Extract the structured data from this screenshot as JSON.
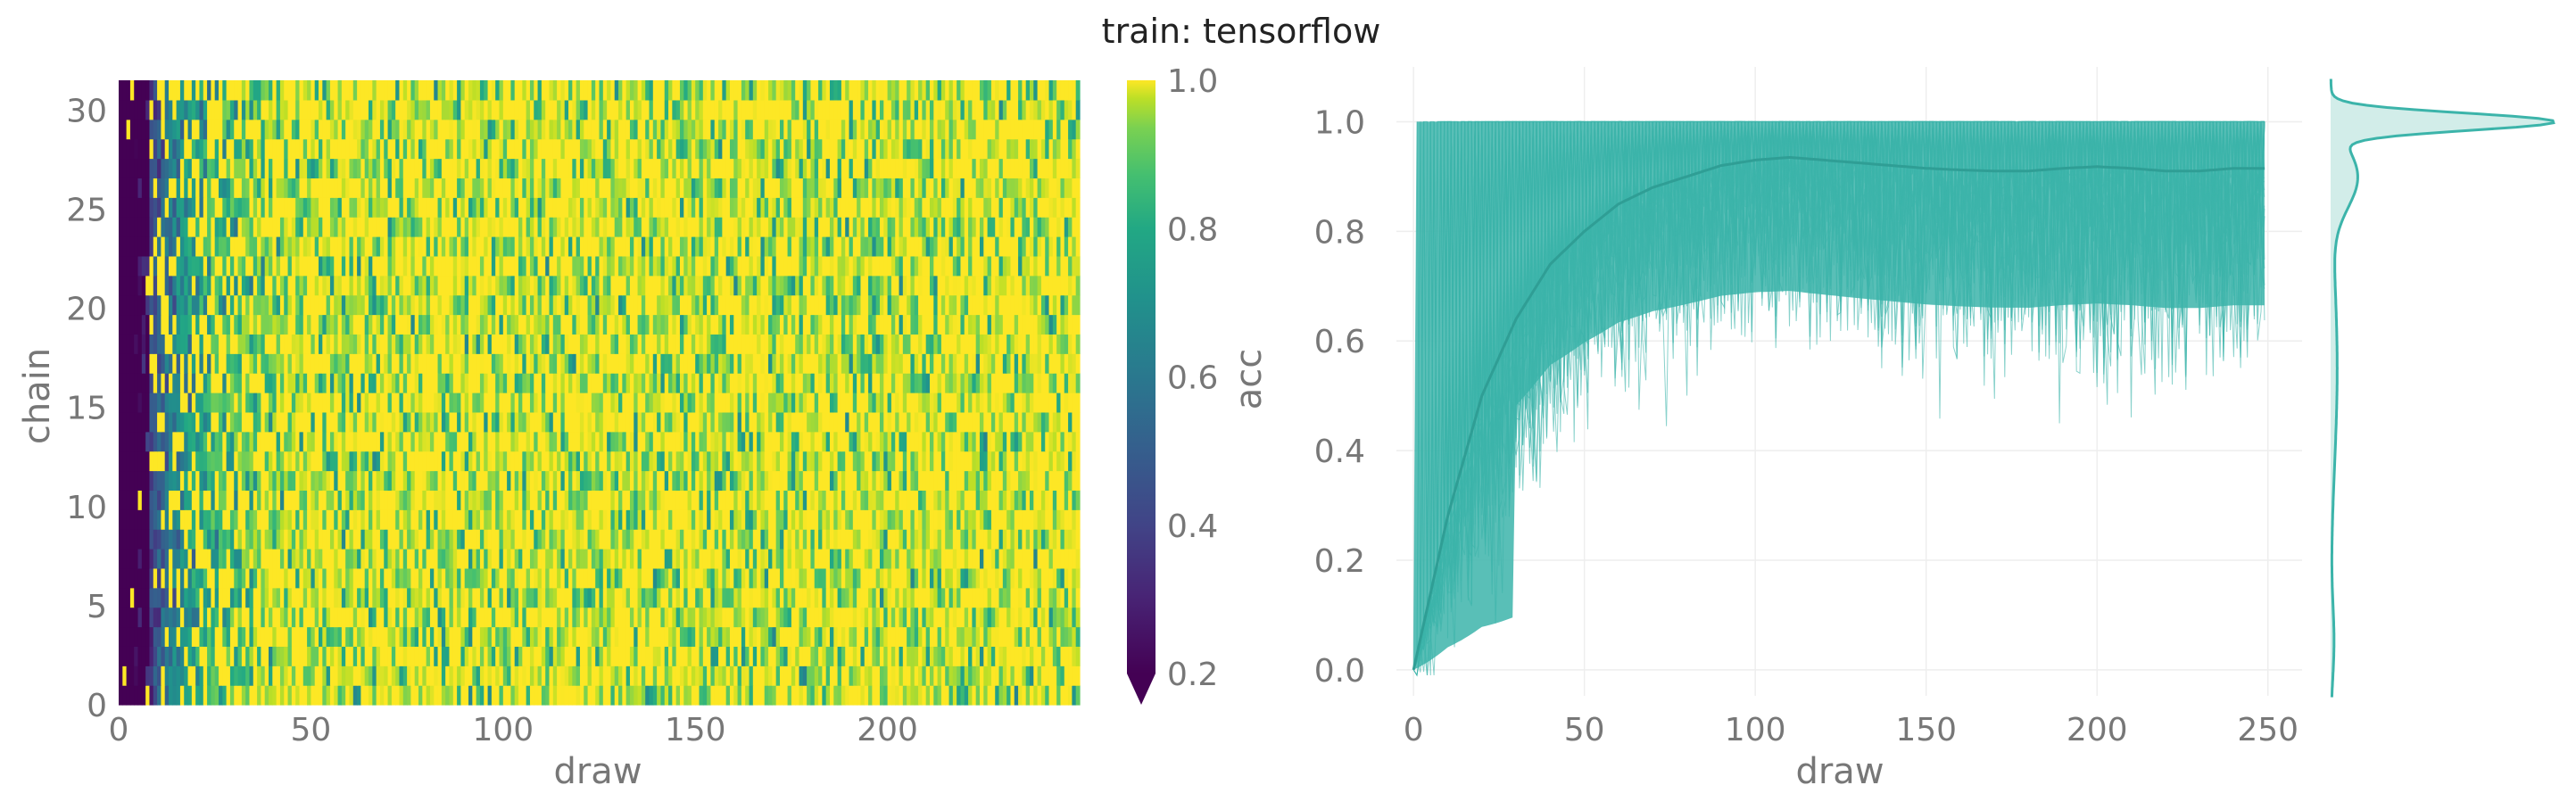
{
  "title": "train: tensorflow",
  "colors": {
    "trace": "#3cb4aa",
    "trace_fill": "#cdebe7",
    "tick_text": "#777777",
    "grid": "#eeeeee",
    "background": "#ffffff"
  },
  "chart_data": [
    {
      "type": "heatmap",
      "colormap": "viridis",
      "xlabel": "draw",
      "ylabel": "chain",
      "x_ticks": [
        "0",
        "50",
        "100",
        "150",
        "200"
      ],
      "y_ticks": [
        "0",
        "5",
        "10",
        "15",
        "20",
        "25",
        "30"
      ],
      "xlim": [
        0,
        249
      ],
      "ylim": [
        0,
        31.5
      ],
      "n_draws": 250,
      "n_chains": 32,
      "colorbar": {
        "label": "acc",
        "ticks": [
          "0.2",
          "0.4",
          "0.6",
          "0.8",
          "1.0"
        ],
        "range": [
          0.2,
          1.0
        ],
        "extend": "min"
      },
      "description_values": {
        "early_draws_0_to_10": "mostly below 0.2 (dark purple)",
        "draws_10_to_40": "mixed, 0.3 to 1.0",
        "draws_40_to_249": "mostly 0.8 to 1.0"
      }
    },
    {
      "type": "line",
      "xlabel": "draw",
      "ylabel": "",
      "x_ticks": [
        "0",
        "50",
        "100",
        "150",
        "200",
        "250"
      ],
      "y_ticks": [
        "0.0",
        "0.2",
        "0.4",
        "0.6",
        "0.8",
        "1.0"
      ],
      "xlim": [
        -5,
        260
      ],
      "ylim": [
        -0.08,
        1.1
      ],
      "n_series": 32,
      "series_color": "#3cb4aa",
      "mean_curve": {
        "x": [
          0,
          10,
          20,
          30,
          40,
          50,
          60,
          70,
          80,
          90,
          100,
          110,
          120,
          130,
          140,
          150,
          160,
          170,
          180,
          190,
          200,
          210,
          220,
          230,
          240,
          249
        ],
        "y": [
          0.0,
          0.28,
          0.5,
          0.64,
          0.74,
          0.8,
          0.85,
          0.88,
          0.9,
          0.92,
          0.93,
          0.935,
          0.93,
          0.925,
          0.92,
          0.915,
          0.912,
          0.91,
          0.91,
          0.915,
          0.918,
          0.915,
          0.91,
          0.91,
          0.915,
          0.915
        ]
      },
      "lower_envelope": {
        "x": [
          0,
          5,
          10,
          15,
          20,
          25,
          30,
          40,
          50,
          60,
          80,
          100,
          120,
          150,
          180,
          200,
          230,
          249
        ],
        "y": [
          0.0,
          0.02,
          0.03,
          0.08,
          0.1,
          0.05,
          0.2,
          0.3,
          0.4,
          0.45,
          0.5,
          0.55,
          0.5,
          0.5,
          0.5,
          0.4,
          0.45,
          0.5
        ]
      },
      "marginal_density": {
        "orientation": "vertical",
        "peak_at": 1.0,
        "tail_to": -0.05
      },
      "grid": true
    }
  ]
}
